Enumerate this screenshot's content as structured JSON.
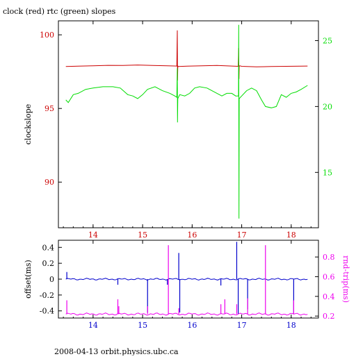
{
  "colors": {
    "background": "#ffffff",
    "axis": "#000000",
    "clock": "#cc0000",
    "rtc": "#00dd00",
    "rtc_spike": "#556b00",
    "offset": "#0000cc",
    "rndtrip": "#ee00ee"
  },
  "chart_data": [
    {
      "type": "line",
      "title": "clock (red) rtc (green) slopes",
      "xlabel": "",
      "ylabel": "clockslope",
      "y2label": "",
      "xlim": [
        13.3,
        18.55
      ],
      "ylim": [
        86.9,
        100.95
      ],
      "y2lim": [
        10.8,
        26.5
      ],
      "xticks": [
        14,
        15,
        16,
        17,
        18
      ],
      "yticks": [
        90,
        95,
        100
      ],
      "y2ticks": [
        15,
        20,
        25
      ],
      "series": [
        {
          "name": "clock",
          "axis": "y",
          "color_key": "clock",
          "x": [
            13.45,
            13.7,
            14.0,
            14.3,
            14.6,
            14.9,
            15.2,
            15.5,
            15.69,
            15.7,
            15.705,
            15.71,
            15.72,
            15.9,
            16.2,
            16.5,
            16.8,
            16.93,
            16.94,
            16.945,
            16.95,
            16.96,
            17.0,
            17.3,
            17.6,
            17.9,
            18.2,
            18.33
          ],
          "y": [
            97.85,
            97.87,
            97.9,
            97.93,
            97.92,
            97.95,
            97.92,
            97.9,
            97.88,
            100.3,
            96.9,
            97.88,
            97.85,
            97.87,
            97.9,
            97.92,
            97.88,
            97.86,
            99.1,
            97.0,
            97.85,
            97.9,
            97.86,
            97.83,
            97.85,
            97.86,
            97.87,
            97.88
          ]
        },
        {
          "name": "rtc",
          "axis": "y2",
          "color_key": "rtc",
          "x": [
            13.45,
            13.5,
            13.6,
            13.7,
            13.85,
            14.0,
            14.2,
            14.4,
            14.55,
            14.7,
            14.8,
            14.9,
            15.0,
            15.1,
            15.25,
            15.4,
            15.55,
            15.65,
            15.69,
            15.7,
            15.705,
            15.71,
            15.75,
            15.85,
            15.95,
            16.05,
            16.15,
            16.3,
            16.5,
            16.6,
            16.7,
            16.8,
            16.88,
            16.935,
            16.94,
            16.945,
            16.95,
            17.0,
            17.1,
            17.2,
            17.3,
            17.4,
            17.48,
            17.6,
            17.7,
            17.8,
            17.9,
            18.0,
            18.1,
            18.2,
            18.33
          ],
          "y": [
            20.5,
            20.3,
            20.9,
            21.0,
            21.3,
            21.4,
            21.5,
            21.5,
            21.4,
            20.9,
            20.8,
            20.6,
            20.9,
            21.3,
            21.5,
            21.2,
            21.0,
            20.8,
            20.7,
            22.9,
            18.8,
            20.6,
            20.9,
            20.8,
            21.0,
            21.4,
            21.5,
            21.4,
            21.0,
            20.8,
            21.0,
            21.0,
            20.8,
            20.8,
            26.2,
            11.5,
            20.6,
            20.8,
            21.2,
            21.4,
            21.2,
            20.5,
            20.0,
            19.9,
            20.0,
            20.9,
            20.7,
            21.0,
            21.1,
            21.3,
            21.6
          ]
        }
      ]
    },
    {
      "type": "line",
      "title": "",
      "xlabel": "",
      "ylabel": "offset(ms)",
      "y2label": "rnd-trip(ms)",
      "xlim": [
        13.3,
        18.55
      ],
      "ylim": [
        -0.49,
        0.49
      ],
      "y2lim": [
        0.18,
        0.97
      ],
      "xticks": [
        14,
        15,
        16,
        17,
        18
      ],
      "yticks": [
        -0.4,
        -0.2,
        0,
        0.2,
        0.4
      ],
      "y2ticks": [
        0.2,
        0.4,
        0.6,
        0.8
      ],
      "series": [
        {
          "name": "offset",
          "axis": "y",
          "color_key": "offset",
          "base": 0.0,
          "spikes": [
            {
              "x": 13.47,
              "y": 0.09
            },
            {
              "x": 14.5,
              "y": -0.07
            },
            {
              "x": 15.1,
              "y": -0.42
            },
            {
              "x": 15.5,
              "y": -0.07
            },
            {
              "x": 15.73,
              "y": 0.33
            },
            {
              "x": 15.75,
              "y": -0.42
            },
            {
              "x": 16.58,
              "y": -0.08
            },
            {
              "x": 16.9,
              "y": 0.47
            },
            {
              "x": 16.93,
              "y": -0.44
            },
            {
              "x": 17.12,
              "y": -0.38
            },
            {
              "x": 18.05,
              "y": -0.43
            }
          ]
        },
        {
          "name": "rnd-trip",
          "axis": "y2",
          "color_key": "rndtrip",
          "base": 0.22,
          "spikes": [
            {
              "x": 13.47,
              "y": 0.36
            },
            {
              "x": 14.5,
              "y": 0.37
            },
            {
              "x": 14.52,
              "y": 0.3
            },
            {
              "x": 15.1,
              "y": 0.3
            },
            {
              "x": 15.52,
              "y": 0.92
            },
            {
              "x": 15.73,
              "y": 0.28
            },
            {
              "x": 16.58,
              "y": 0.32
            },
            {
              "x": 16.66,
              "y": 0.37
            },
            {
              "x": 16.9,
              "y": 0.32
            },
            {
              "x": 17.12,
              "y": 0.38
            },
            {
              "x": 17.48,
              "y": 0.92
            },
            {
              "x": 18.05,
              "y": 0.36
            }
          ]
        }
      ]
    }
  ],
  "footer": "2008-04-13  orbit.physics.ubc.ca"
}
